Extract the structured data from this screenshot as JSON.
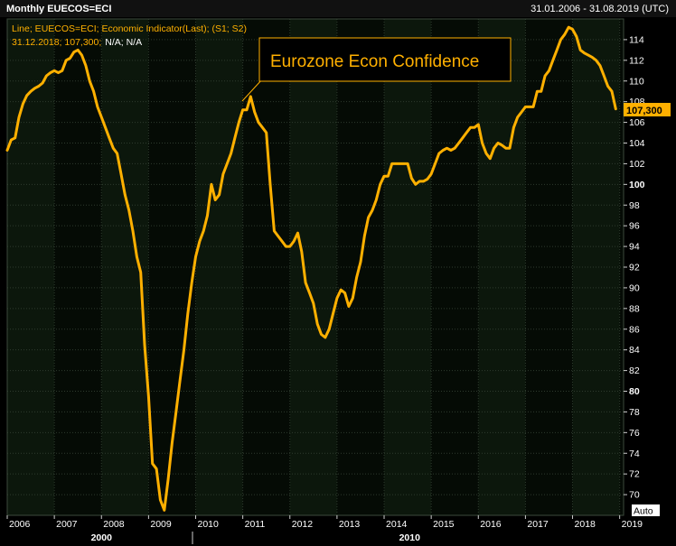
{
  "header": {
    "title": "Monthly EUECOS=ECI",
    "date_range": "31.01.2006 - 31.08.2019 (UTC)"
  },
  "legend": {
    "line1": "Line; EUECOS=ECI; Economic Indicator(Last); (S1; S2)",
    "line2_values": "31.12.2018; 107,300;",
    "line2_na": "N/A; N/A"
  },
  "callout": {
    "text": "Eurozone Econ Confidence"
  },
  "last_value_label": "107,300",
  "auto_button": "Auto",
  "colors": {
    "background": "#000000",
    "plot_bg_a": "#0c170c",
    "plot_bg_b": "#050b05",
    "line": "#ffb000",
    "grid": "#2e3b2e"
  },
  "chart_data": {
    "type": "line",
    "title": "Monthly EUECOS=ECI",
    "x_tick_labels": [
      "2006",
      "2007",
      "2008",
      "2009",
      "2010",
      "2011",
      "2012",
      "2013",
      "2014",
      "2015",
      "2016",
      "2017",
      "2018",
      "2019"
    ],
    "x_decade_labels": [
      "2000",
      "2010"
    ],
    "y_tick_labels": [
      "70",
      "72",
      "74",
      "76",
      "78",
      "80",
      "82",
      "84",
      "86",
      "88",
      "90",
      "92",
      "94",
      "96",
      "98",
      "100",
      "102",
      "104",
      "106",
      "108",
      "110",
      "112",
      "114"
    ],
    "y_bold_ticks": [
      "80",
      "100"
    ],
    "ylim": [
      68,
      116
    ],
    "xlim": [
      "2006-01",
      "2019-02"
    ],
    "grid": true,
    "series": [
      {
        "name": "EUECOS=ECI",
        "points": [
          [
            "2006-01",
            103.3
          ],
          [
            "2006-02",
            104.3
          ],
          [
            "2006-03",
            104.5
          ],
          [
            "2006-04",
            106.5
          ],
          [
            "2006-05",
            107.8
          ],
          [
            "2006-06",
            108.6
          ],
          [
            "2006-07",
            109.0
          ],
          [
            "2006-08",
            109.3
          ],
          [
            "2006-09",
            109.5
          ],
          [
            "2006-10",
            109.8
          ],
          [
            "2006-11",
            110.5
          ],
          [
            "2006-12",
            110.8
          ],
          [
            "2007-01",
            111.0
          ],
          [
            "2007-02",
            110.8
          ],
          [
            "2007-03",
            111.0
          ],
          [
            "2007-04",
            112.0
          ],
          [
            "2007-05",
            112.2
          ],
          [
            "2007-06",
            112.8
          ],
          [
            "2007-07",
            113.0
          ],
          [
            "2007-08",
            112.5
          ],
          [
            "2007-09",
            111.5
          ],
          [
            "2007-10",
            110.0
          ],
          [
            "2007-11",
            109.0
          ],
          [
            "2007-12",
            107.5
          ],
          [
            "2008-01",
            106.5
          ],
          [
            "2008-02",
            105.5
          ],
          [
            "2008-03",
            104.5
          ],
          [
            "2008-04",
            103.5
          ],
          [
            "2008-05",
            103.0
          ],
          [
            "2008-06",
            101.0
          ],
          [
            "2008-07",
            99.0
          ],
          [
            "2008-08",
            97.5
          ],
          [
            "2008-09",
            95.5
          ],
          [
            "2008-10",
            93.0
          ],
          [
            "2008-11",
            91.5
          ],
          [
            "2008-12",
            84.5
          ],
          [
            "2009-01",
            79.5
          ],
          [
            "2009-02",
            73.0
          ],
          [
            "2009-03",
            72.5
          ],
          [
            "2009-04",
            69.5
          ],
          [
            "2009-05",
            68.5
          ],
          [
            "2009-06",
            71.5
          ],
          [
            "2009-07",
            75.0
          ],
          [
            "2009-08",
            78.0
          ],
          [
            "2009-09",
            81.0
          ],
          [
            "2009-10",
            84.0
          ],
          [
            "2009-11",
            87.5
          ],
          [
            "2009-12",
            90.5
          ],
          [
            "2010-01",
            93.0
          ],
          [
            "2010-02",
            94.5
          ],
          [
            "2010-03",
            95.5
          ],
          [
            "2010-04",
            97.0
          ],
          [
            "2010-05",
            100.0
          ],
          [
            "2010-06",
            98.5
          ],
          [
            "2010-07",
            99.0
          ],
          [
            "2010-08",
            101.0
          ],
          [
            "2010-09",
            102.0
          ],
          [
            "2010-10",
            103.0
          ],
          [
            "2010-11",
            104.5
          ],
          [
            "2010-12",
            106.0
          ],
          [
            "2011-01",
            107.2
          ],
          [
            "2011-02",
            107.2
          ],
          [
            "2011-03",
            108.5
          ],
          [
            "2011-04",
            107.0
          ],
          [
            "2011-05",
            106.0
          ],
          [
            "2011-06",
            105.5
          ],
          [
            "2011-07",
            105.0
          ],
          [
            "2011-08",
            100.0
          ],
          [
            "2011-09",
            95.5
          ],
          [
            "2011-10",
            95.0
          ],
          [
            "2011-11",
            94.5
          ],
          [
            "2011-12",
            94.0
          ],
          [
            "2012-01",
            94.0
          ],
          [
            "2012-02",
            94.5
          ],
          [
            "2012-03",
            95.3
          ],
          [
            "2012-04",
            93.5
          ],
          [
            "2012-05",
            90.5
          ],
          [
            "2012-06",
            89.5
          ],
          [
            "2012-07",
            88.5
          ],
          [
            "2012-08",
            86.5
          ],
          [
            "2012-09",
            85.5
          ],
          [
            "2012-10",
            85.2
          ],
          [
            "2012-11",
            86.0
          ],
          [
            "2012-12",
            87.5
          ],
          [
            "2013-01",
            89.0
          ],
          [
            "2013-02",
            89.8
          ],
          [
            "2013-03",
            89.5
          ],
          [
            "2013-04",
            88.2
          ],
          [
            "2013-05",
            89.0
          ],
          [
            "2013-06",
            91.0
          ],
          [
            "2013-07",
            92.5
          ],
          [
            "2013-08",
            95.0
          ],
          [
            "2013-09",
            96.8
          ],
          [
            "2013-10",
            97.5
          ],
          [
            "2013-11",
            98.5
          ],
          [
            "2013-12",
            100.0
          ],
          [
            "2014-01",
            100.8
          ],
          [
            "2014-02",
            100.8
          ],
          [
            "2014-03",
            102.0
          ],
          [
            "2014-04",
            102.0
          ],
          [
            "2014-05",
            102.0
          ],
          [
            "2014-06",
            102.0
          ],
          [
            "2014-07",
            102.0
          ],
          [
            "2014-08",
            100.6
          ],
          [
            "2014-09",
            100.0
          ],
          [
            "2014-10",
            100.3
          ],
          [
            "2014-11",
            100.3
          ],
          [
            "2014-12",
            100.5
          ],
          [
            "2015-01",
            101.0
          ],
          [
            "2015-02",
            102.0
          ],
          [
            "2015-03",
            103.0
          ],
          [
            "2015-04",
            103.3
          ],
          [
            "2015-05",
            103.5
          ],
          [
            "2015-06",
            103.3
          ],
          [
            "2015-07",
            103.5
          ],
          [
            "2015-08",
            104.0
          ],
          [
            "2015-09",
            104.5
          ],
          [
            "2015-10",
            105.0
          ],
          [
            "2015-11",
            105.5
          ],
          [
            "2015-12",
            105.5
          ],
          [
            "2016-01",
            105.8
          ],
          [
            "2016-02",
            104.0
          ],
          [
            "2016-03",
            103.0
          ],
          [
            "2016-04",
            102.5
          ],
          [
            "2016-05",
            103.5
          ],
          [
            "2016-06",
            104.0
          ],
          [
            "2016-07",
            103.8
          ],
          [
            "2016-08",
            103.5
          ],
          [
            "2016-09",
            103.5
          ],
          [
            "2016-10",
            105.5
          ],
          [
            "2016-11",
            106.5
          ],
          [
            "2016-12",
            107.0
          ],
          [
            "2017-01",
            107.5
          ],
          [
            "2017-02",
            107.5
          ],
          [
            "2017-03",
            107.5
          ],
          [
            "2017-04",
            109.0
          ],
          [
            "2017-05",
            109.0
          ],
          [
            "2017-06",
            110.5
          ],
          [
            "2017-07",
            111.0
          ],
          [
            "2017-08",
            112.0
          ],
          [
            "2017-09",
            113.0
          ],
          [
            "2017-10",
            114.0
          ],
          [
            "2017-11",
            114.5
          ],
          [
            "2017-12",
            115.2
          ],
          [
            "2018-01",
            115.0
          ],
          [
            "2018-02",
            114.3
          ],
          [
            "2018-03",
            113.0
          ],
          [
            "2018-04",
            112.7
          ],
          [
            "2018-05",
            112.5
          ],
          [
            "2018-06",
            112.3
          ],
          [
            "2018-07",
            112.0
          ],
          [
            "2018-08",
            111.5
          ],
          [
            "2018-09",
            110.5
          ],
          [
            "2018-10",
            109.5
          ],
          [
            "2018-11",
            109.0
          ],
          [
            "2018-12",
            107.3
          ]
        ]
      }
    ]
  }
}
